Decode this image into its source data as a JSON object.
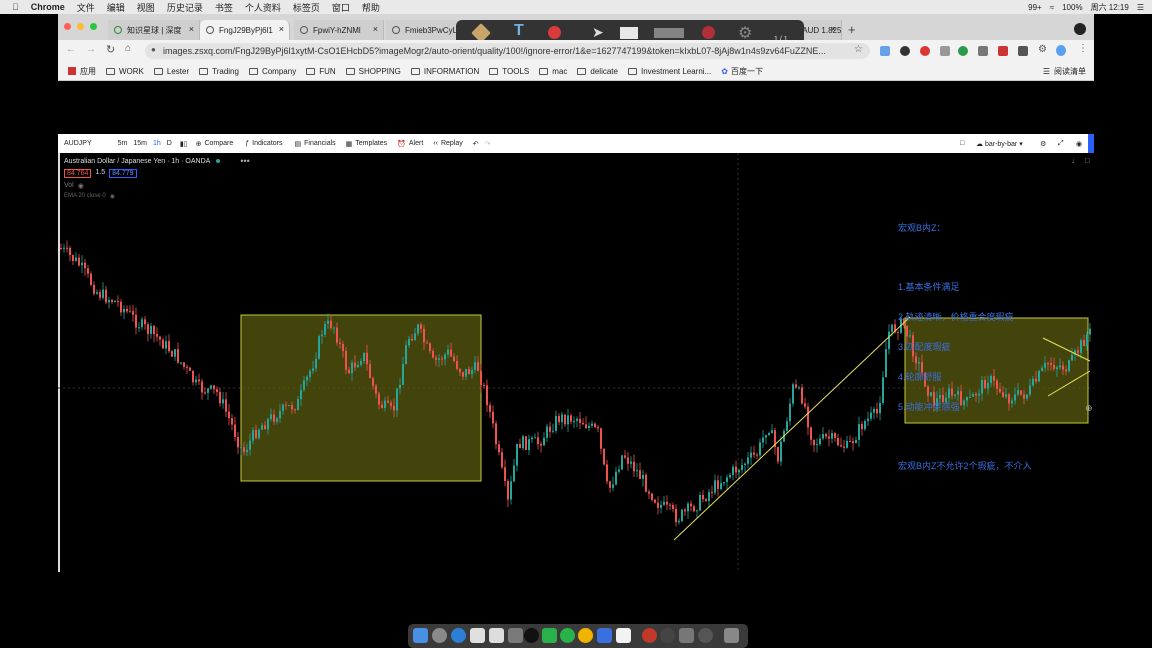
{
  "menubar": {
    "app": "Chrome",
    "items": [
      "文件",
      "编辑",
      "视图",
      "历史记录",
      "书签",
      "个人资料",
      "标签页",
      "窗口",
      "帮助"
    ],
    "status": {
      "battery": "100%",
      "clock": "周六 12:19",
      "badge": "99+"
    }
  },
  "tabs": [
    {
      "title": "知识星球 | 深度"
    },
    {
      "title": "FngJ29ByPj6l1"
    },
    {
      "title": "FpwiY-hZNMl"
    },
    {
      "title": "Fmieb3PwCyL"
    },
    {
      "title": "GBPAUD 1.825"
    }
  ],
  "omnibox": {
    "url": "images.zsxq.com/FngJ29ByPj6l1xytM-CsO1EHcbD5?imageMogr2/auto-orient/quality/100!/ignore-error/1&e=1627747199&token=kIxbL07-8jAj8w1n4s9zv64FuZZNE..."
  },
  "annotation": {
    "page_counter": "1 / 1"
  },
  "bookmarks": [
    "应用",
    "WORK",
    "Lester",
    "Trading",
    "Company",
    "FUN",
    "SHOPPING",
    "INFORMATION",
    "TOOLS",
    "mac",
    "delicate",
    "Investment Learni...",
    "百度一下"
  ],
  "reading_list": "阅读清单",
  "tv_toolbar": {
    "symbol": "AUDJPY",
    "intervals": [
      "5m",
      "15m",
      "1h",
      "D"
    ],
    "compare": "Compare",
    "indicators": "Indicators",
    "financials": "Financials",
    "templates": "Templates",
    "alert": "Alert",
    "replay": "Replay",
    "bar_mode": "bar-by-bar"
  },
  "legend": {
    "title": "Australian Dollar / Japanese Yen · 1h · OANDA",
    "bid": "84.764",
    "spread": "1.5",
    "ask": "84.779",
    "vol": "Vol",
    "ema": "EMA 20 close 0"
  },
  "note": {
    "title": "宏观B内Z：",
    "lines": [
      "1.基本条件满足",
      "2.轨迹清晰，价格重合度瑕疵",
      "3.匹配度瑕疵",
      "4.轮廓舒服",
      "5.动能冲突感强"
    ],
    "footer": "宏观B内Z不允许2个瑕疵，不介入"
  },
  "colors": {
    "up": "#26a69a",
    "down": "#ef5350",
    "zone_fill": "#5a5a10",
    "zone_stroke": "#c8c83c",
    "trendline": "#e8e05a",
    "note_text": "#3a6fe0"
  }
}
